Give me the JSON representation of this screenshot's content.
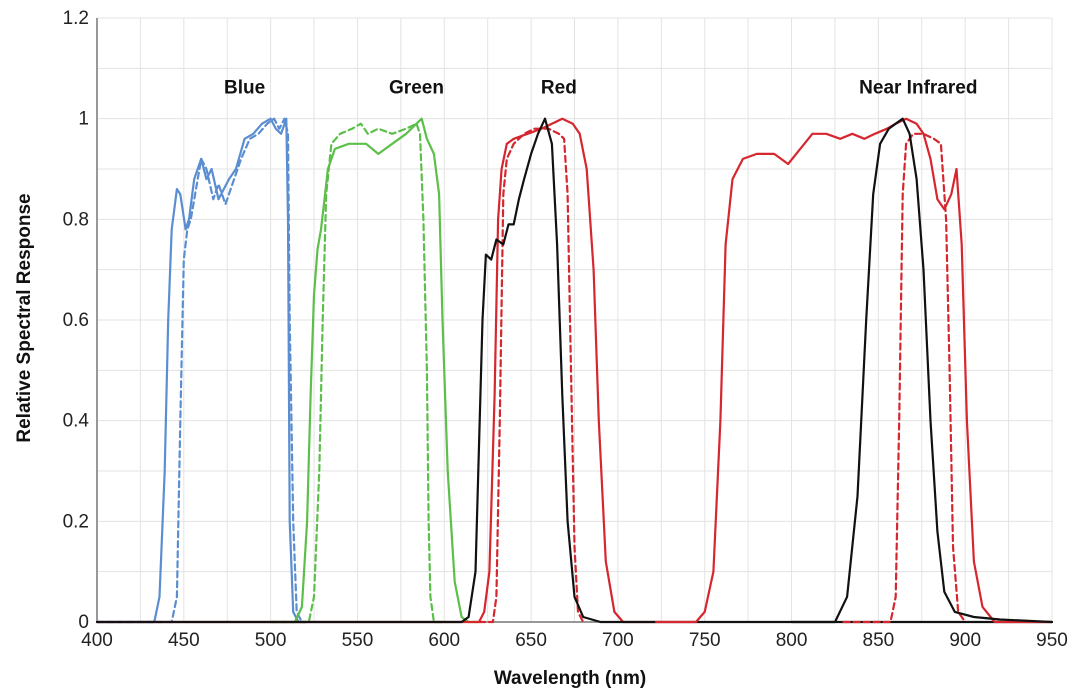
{
  "chart_data": {
    "type": "line",
    "title": "",
    "xlabel": "Wavelength (nm)",
    "ylabel": "Relative Spectral Response",
    "xlim": [
      400,
      950
    ],
    "ylim": [
      0,
      1.2
    ],
    "xticks": [
      400,
      450,
      500,
      550,
      600,
      650,
      700,
      750,
      800,
      850,
      900,
      950
    ],
    "xtick_labels": [
      "400",
      "450",
      "500",
      "550",
      "600",
      "650",
      "700",
      "750",
      "800",
      "850",
      "900",
      "950"
    ],
    "yticks": [
      0,
      0.2,
      0.4,
      0.6,
      0.8,
      1,
      1.2
    ],
    "ytick_labels": [
      "0",
      "0.2",
      "0.4",
      "0.6",
      "0.8",
      "1",
      "1.2"
    ],
    "grid": true,
    "colors": {
      "blue": "#5b8ed1",
      "green": "#5cbf4a",
      "red": "#d6262e",
      "black": "#111111",
      "grid": "#e3e3e3",
      "axis": "#777777"
    },
    "annotations": [
      {
        "text": "Blue",
        "x": 485,
        "y": 1.05
      },
      {
        "text": "Green",
        "x": 584,
        "y": 1.05
      },
      {
        "text": "Red",
        "x": 666,
        "y": 1.05
      },
      {
        "text": "Near Infrared",
        "x": 873,
        "y": 1.05
      }
    ],
    "series": [
      {
        "color": "blue",
        "dash": "solid",
        "points": [
          [
            400,
            0
          ],
          [
            433,
            0
          ],
          [
            436,
            0.05
          ],
          [
            439,
            0.3
          ],
          [
            441,
            0.6
          ],
          [
            443,
            0.78
          ],
          [
            446,
            0.86
          ],
          [
            448,
            0.85
          ],
          [
            451,
            0.78
          ],
          [
            453,
            0.8
          ],
          [
            456,
            0.88
          ],
          [
            458,
            0.9
          ],
          [
            460,
            0.92
          ],
          [
            463,
            0.88
          ],
          [
            466,
            0.9
          ],
          [
            470,
            0.84
          ],
          [
            473,
            0.86
          ],
          [
            476,
            0.88
          ],
          [
            480,
            0.9
          ],
          [
            485,
            0.96
          ],
          [
            490,
            0.97
          ],
          [
            495,
            0.99
          ],
          [
            500,
            1.0
          ],
          [
            503,
            0.98
          ],
          [
            506,
            0.97
          ],
          [
            509,
            1.0
          ],
          [
            510,
            0.8
          ],
          [
            511,
            0.2
          ],
          [
            513,
            0.02
          ],
          [
            516,
            0
          ],
          [
            520,
            0
          ]
        ]
      },
      {
        "color": "blue",
        "dash": "dashed",
        "points": [
          [
            400,
            0
          ],
          [
            443,
            0
          ],
          [
            446,
            0.05
          ],
          [
            448,
            0.4
          ],
          [
            450,
            0.72
          ],
          [
            452,
            0.78
          ],
          [
            454,
            0.8
          ],
          [
            457,
            0.86
          ],
          [
            460,
            0.92
          ],
          [
            463,
            0.9
          ],
          [
            467,
            0.84
          ],
          [
            470,
            0.87
          ],
          [
            474,
            0.83
          ],
          [
            478,
            0.87
          ],
          [
            483,
            0.92
          ],
          [
            488,
            0.96
          ],
          [
            493,
            0.97
          ],
          [
            498,
            0.99
          ],
          [
            502,
            1.0
          ],
          [
            505,
            0.98
          ],
          [
            508,
            1.0
          ],
          [
            510,
            0.97
          ],
          [
            511,
            0.6
          ],
          [
            513,
            0.2
          ],
          [
            515,
            0.02
          ],
          [
            518,
            0
          ],
          [
            520,
            0
          ]
        ]
      },
      {
        "color": "green",
        "dash": "solid",
        "points": [
          [
            500,
            0
          ],
          [
            514,
            0
          ],
          [
            518,
            0.03
          ],
          [
            521,
            0.2
          ],
          [
            523,
            0.45
          ],
          [
            525,
            0.65
          ],
          [
            527,
            0.74
          ],
          [
            529,
            0.78
          ],
          [
            531,
            0.84
          ],
          [
            533,
            0.9
          ],
          [
            537,
            0.94
          ],
          [
            545,
            0.95
          ],
          [
            555,
            0.95
          ],
          [
            562,
            0.93
          ],
          [
            570,
            0.95
          ],
          [
            578,
            0.97
          ],
          [
            584,
            0.99
          ],
          [
            587,
            1.0
          ],
          [
            590,
            0.96
          ],
          [
            594,
            0.93
          ],
          [
            597,
            0.85
          ],
          [
            599,
            0.6
          ],
          [
            602,
            0.3
          ],
          [
            606,
            0.08
          ],
          [
            610,
            0.01
          ],
          [
            614,
            0
          ],
          [
            620,
            0
          ]
        ]
      },
      {
        "color": "green",
        "dash": "dashed",
        "points": [
          [
            500,
            0
          ],
          [
            522,
            0
          ],
          [
            525,
            0.05
          ],
          [
            528,
            0.3
          ],
          [
            530,
            0.6
          ],
          [
            532,
            0.85
          ],
          [
            535,
            0.95
          ],
          [
            540,
            0.97
          ],
          [
            547,
            0.98
          ],
          [
            552,
            0.99
          ],
          [
            556,
            0.97
          ],
          [
            562,
            0.98
          ],
          [
            570,
            0.97
          ],
          [
            578,
            0.98
          ],
          [
            584,
            0.99
          ],
          [
            586,
            0.97
          ],
          [
            588,
            0.8
          ],
          [
            590,
            0.5
          ],
          [
            591,
            0.2
          ],
          [
            592,
            0.05
          ],
          [
            594,
            0
          ],
          [
            600,
            0
          ]
        ]
      },
      {
        "color": "red",
        "dash": "solid",
        "points": [
          [
            400,
            0
          ],
          [
            620,
            0
          ],
          [
            623,
            0.02
          ],
          [
            626,
            0.1
          ],
          [
            629,
            0.45
          ],
          [
            631,
            0.8
          ],
          [
            633,
            0.9
          ],
          [
            636,
            0.95
          ],
          [
            640,
            0.96
          ],
          [
            648,
            0.97
          ],
          [
            656,
            0.98
          ],
          [
            662,
            0.99
          ],
          [
            668,
            1.0
          ],
          [
            674,
            0.99
          ],
          [
            678,
            0.97
          ],
          [
            682,
            0.9
          ],
          [
            686,
            0.7
          ],
          [
            689,
            0.4
          ],
          [
            693,
            0.12
          ],
          [
            698,
            0.02
          ],
          [
            703,
            0
          ],
          [
            722,
            0
          ]
        ]
      },
      {
        "color": "red",
        "dash": "dashed",
        "points": [
          [
            620,
            0
          ],
          [
            628,
            0
          ],
          [
            630,
            0.05
          ],
          [
            632,
            0.4
          ],
          [
            634,
            0.85
          ],
          [
            636,
            0.92
          ],
          [
            640,
            0.95
          ],
          [
            646,
            0.97
          ],
          [
            652,
            0.98
          ],
          [
            660,
            0.98
          ],
          [
            666,
            0.97
          ],
          [
            669,
            0.96
          ],
          [
            671,
            0.85
          ],
          [
            673,
            0.5
          ],
          [
            675,
            0.15
          ],
          [
            677,
            0.02
          ],
          [
            680,
            0
          ]
        ]
      },
      {
        "color": "black",
        "dash": "solid",
        "points": [
          [
            400,
            0
          ],
          [
            610,
            0
          ],
          [
            614,
            0.01
          ],
          [
            618,
            0.1
          ],
          [
            620,
            0.35
          ],
          [
            622,
            0.6
          ],
          [
            624,
            0.73
          ],
          [
            627,
            0.72
          ],
          [
            630,
            0.76
          ],
          [
            634,
            0.75
          ],
          [
            637,
            0.79
          ],
          [
            640,
            0.79
          ],
          [
            643,
            0.84
          ],
          [
            646,
            0.88
          ],
          [
            650,
            0.93
          ],
          [
            654,
            0.97
          ],
          [
            658,
            1.0
          ],
          [
            662,
            0.95
          ],
          [
            665,
            0.75
          ],
          [
            668,
            0.45
          ],
          [
            671,
            0.2
          ],
          [
            675,
            0.05
          ],
          [
            680,
            0.01
          ],
          [
            690,
            0
          ],
          [
            950,
            0
          ]
        ]
      },
      {
        "color": "red",
        "dash": "solid",
        "points": [
          [
            722,
            0
          ],
          [
            745,
            0
          ],
          [
            750,
            0.02
          ],
          [
            755,
            0.1
          ],
          [
            759,
            0.4
          ],
          [
            762,
            0.75
          ],
          [
            766,
            0.88
          ],
          [
            772,
            0.92
          ],
          [
            780,
            0.93
          ],
          [
            790,
            0.93
          ],
          [
            798,
            0.91
          ],
          [
            805,
            0.94
          ],
          [
            812,
            0.97
          ],
          [
            820,
            0.97
          ],
          [
            828,
            0.96
          ],
          [
            835,
            0.97
          ],
          [
            842,
            0.96
          ],
          [
            848,
            0.97
          ],
          [
            855,
            0.98
          ],
          [
            860,
            0.99
          ],
          [
            866,
            1.0
          ],
          [
            872,
            0.99
          ],
          [
            876,
            0.97
          ],
          [
            880,
            0.92
          ],
          [
            884,
            0.84
          ],
          [
            888,
            0.82
          ],
          [
            892,
            0.85
          ],
          [
            895,
            0.9
          ],
          [
            898,
            0.75
          ],
          [
            901,
            0.4
          ],
          [
            905,
            0.12
          ],
          [
            910,
            0.03
          ],
          [
            917,
            0
          ],
          [
            950,
            0
          ]
        ]
      },
      {
        "color": "red",
        "dash": "dashed",
        "points": [
          [
            830,
            0
          ],
          [
            857,
            0
          ],
          [
            860,
            0.05
          ],
          [
            862,
            0.4
          ],
          [
            864,
            0.85
          ],
          [
            866,
            0.95
          ],
          [
            870,
            0.97
          ],
          [
            876,
            0.97
          ],
          [
            882,
            0.96
          ],
          [
            886,
            0.95
          ],
          [
            889,
            0.8
          ],
          [
            891,
            0.5
          ],
          [
            893,
            0.15
          ],
          [
            896,
            0.02
          ],
          [
            900,
            0
          ]
        ]
      },
      {
        "color": "black",
        "dash": "solid",
        "points": [
          [
            800,
            0
          ],
          [
            825,
            0
          ],
          [
            832,
            0.05
          ],
          [
            838,
            0.25
          ],
          [
            843,
            0.6
          ],
          [
            847,
            0.85
          ],
          [
            851,
            0.95
          ],
          [
            856,
            0.98
          ],
          [
            860,
            0.99
          ],
          [
            864,
            1.0
          ],
          [
            868,
            0.97
          ],
          [
            872,
            0.88
          ],
          [
            876,
            0.7
          ],
          [
            880,
            0.4
          ],
          [
            884,
            0.18
          ],
          [
            888,
            0.06
          ],
          [
            894,
            0.02
          ],
          [
            905,
            0.01
          ],
          [
            920,
            0.005
          ],
          [
            950,
            0
          ]
        ]
      }
    ]
  }
}
